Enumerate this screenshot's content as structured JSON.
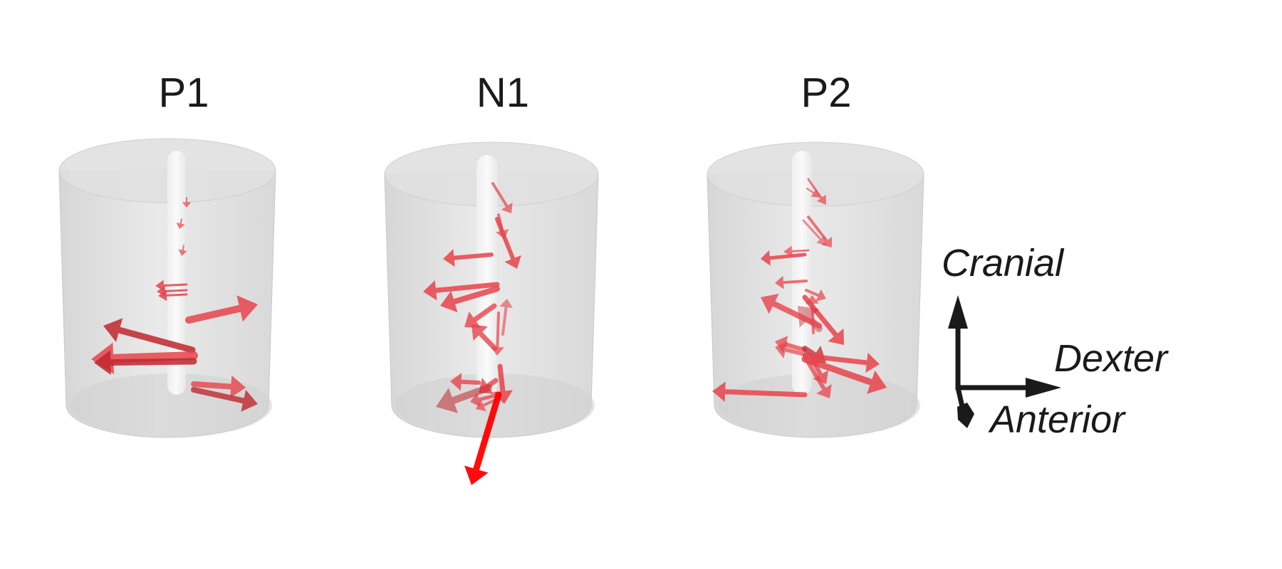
{
  "panels": [
    {
      "id": "p1",
      "title": "P1"
    },
    {
      "id": "n1",
      "title": "N1"
    },
    {
      "id": "p2",
      "title": "P2"
    }
  ],
  "axes": {
    "cranial": "Cranial",
    "dexter": "Dexter",
    "anterior": "Anterior"
  },
  "colors": {
    "arrow": "#e8444c",
    "arrow_dark": "#c0282e",
    "arrow_bright": "#ff0000",
    "cylinder": "#d9d9d9",
    "axis": "#1a1a1a"
  }
}
